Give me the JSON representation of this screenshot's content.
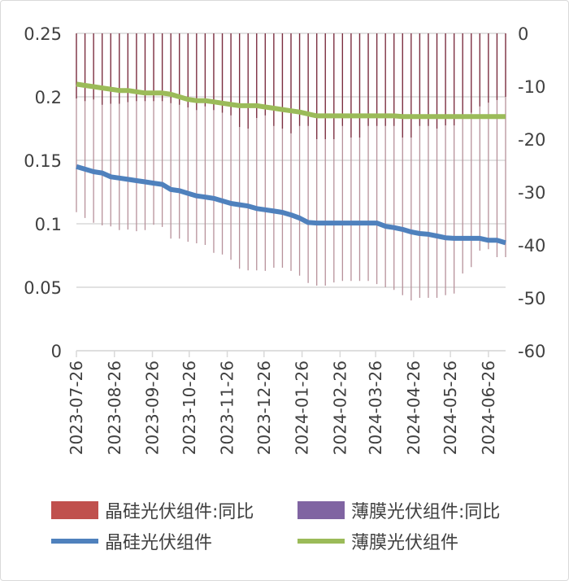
{
  "chart_data": {
    "type": "bar+line",
    "x": [
      "2023-07-26",
      "2023-08-02",
      "2023-08-09",
      "2023-08-16",
      "2023-08-23",
      "2023-08-30",
      "2023-09-06",
      "2023-09-13",
      "2023-09-20",
      "2023-09-27",
      "2023-10-04",
      "2023-10-11",
      "2023-10-18",
      "2023-10-25",
      "2023-11-01",
      "2023-11-08",
      "2023-11-15",
      "2023-11-22",
      "2023-11-29",
      "2023-12-06",
      "2023-12-13",
      "2023-12-20",
      "2023-12-27",
      "2024-01-03",
      "2024-01-10",
      "2024-01-17",
      "2024-01-24",
      "2024-01-31",
      "2024-02-07",
      "2024-02-14",
      "2024-02-21",
      "2024-02-28",
      "2024-03-06",
      "2024-03-13",
      "2024-03-20",
      "2024-03-27",
      "2024-04-03",
      "2024-04-10",
      "2024-04-17",
      "2024-04-24",
      "2024-05-01",
      "2024-05-08",
      "2024-05-15",
      "2024-05-22",
      "2024-05-29",
      "2024-06-05",
      "2024-06-12",
      "2024-06-19",
      "2024-06-26",
      "2024-07-03",
      "2024-07-10"
    ],
    "x_tick_labels": [
      "2023-07-26",
      "2023-08-26",
      "2023-09-26",
      "2023-10-26",
      "2023-11-26",
      "2023-12-26",
      "2024-01-26",
      "2024-02-26",
      "2024-03-26",
      "2024-04-26",
      "2024-05-26",
      "2024-06-26"
    ],
    "left_axis": {
      "ylim": [
        0,
        0.25
      ],
      "ticks": [
        "0",
        "0.05",
        "0.1",
        "0.15",
        "0.2",
        "0.25"
      ]
    },
    "right_axis": {
      "ylim": [
        -60,
        0
      ],
      "ticks": [
        "-60",
        "-50",
        "-40",
        "-30",
        "-20",
        "-10",
        "0"
      ]
    },
    "grid": true,
    "legend_position": "bottom",
    "series": [
      {
        "name": "晶硅光伏组件:同比",
        "type": "bar",
        "axis": "right",
        "color": "#C0504D",
        "values": [
          -33.8,
          -34.9,
          -35.8,
          -36.3,
          -36.5,
          -37.2,
          -37.1,
          -37.4,
          -37.2,
          -36.2,
          -36.6,
          -38.8,
          -38.8,
          -39.4,
          -39.7,
          -40,
          -41.5,
          -41.8,
          -42.8,
          -44.5,
          -44.8,
          -44.8,
          -44.9,
          -44.3,
          -44.3,
          -44.9,
          -45.8,
          -47.2,
          -47.7,
          -47.7,
          -47.1,
          -46.8,
          -46.8,
          -46.8,
          -46.8,
          -47.4,
          -48,
          -48.5,
          -49.5,
          -50.5,
          -50,
          -50,
          -50,
          -49.5,
          -49.2,
          -45.4,
          -44.2,
          -41.1,
          -40.8,
          -42.3,
          -42.3
        ]
      },
      {
        "name": "薄膜光伏组件:同比",
        "type": "bar",
        "axis": "right",
        "color": "#8064A2",
        "values": [
          -12.3,
          -12.8,
          -12.5,
          -13.5,
          -13.3,
          -13.3,
          -13,
          -12.8,
          -12.8,
          -12.8,
          -12.8,
          -13.2,
          -13.5,
          -14,
          -14.5,
          -13.8,
          -14.5,
          -15,
          -15.5,
          -17.7,
          -18,
          -16,
          -15.5,
          -17.5,
          -18,
          -18.9,
          -17.5,
          -17.5,
          -20,
          -20,
          -20,
          -17.5,
          -19.7,
          -19.7,
          -17.5,
          -17.5,
          -17.5,
          -17.5,
          -19.7,
          -19.7,
          -17.5,
          -17.5,
          -18,
          -17.4,
          -17.4,
          -16,
          -15,
          -13.8,
          -13.1,
          -12.6,
          -12
        ]
      },
      {
        "name": "晶硅光伏组件",
        "type": "line",
        "axis": "left",
        "color": "#4F81BD",
        "values": [
          0.145,
          0.143,
          0.141,
          0.14,
          0.137,
          0.136,
          0.135,
          0.134,
          0.133,
          0.132,
          0.131,
          0.127,
          0.126,
          0.124,
          0.122,
          0.121,
          0.12,
          0.118,
          0.116,
          0.115,
          0.114,
          0.112,
          0.111,
          0.11,
          0.109,
          0.107,
          0.1045,
          0.101,
          0.1006,
          0.1006,
          0.1006,
          0.1006,
          0.1006,
          0.1006,
          0.1006,
          0.1006,
          0.098,
          0.097,
          0.0956,
          0.0936,
          0.0923,
          0.0917,
          0.0904,
          0.089,
          0.0885,
          0.0885,
          0.0885,
          0.0885,
          0.087,
          0.087,
          0.085
        ]
      },
      {
        "name": "薄膜光伏组件",
        "type": "line",
        "axis": "left",
        "color": "#9BBB59",
        "values": [
          0.21,
          0.209,
          0.208,
          0.207,
          0.206,
          0.205,
          0.205,
          0.204,
          0.203,
          0.203,
          0.203,
          0.202,
          0.2,
          0.198,
          0.197,
          0.197,
          0.196,
          0.195,
          0.194,
          0.193,
          0.193,
          0.193,
          0.192,
          0.191,
          0.19,
          0.189,
          0.188,
          0.1865,
          0.185,
          0.185,
          0.185,
          0.185,
          0.185,
          0.185,
          0.185,
          0.185,
          0.185,
          0.185,
          0.1845,
          0.1845,
          0.1845,
          0.1845,
          0.1845,
          0.1845,
          0.1845,
          0.1845,
          0.1845,
          0.1845,
          0.1845,
          0.1845,
          0.1845
        ]
      }
    ]
  }
}
